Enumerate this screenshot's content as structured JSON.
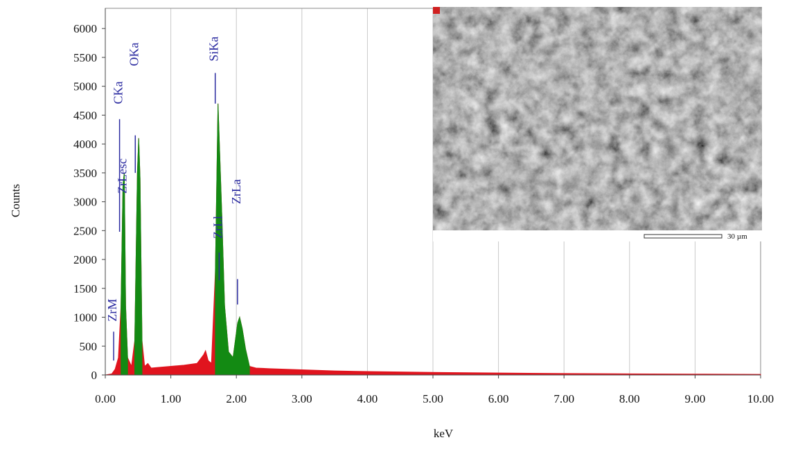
{
  "chart_data": {
    "type": "area",
    "x_label": "keV",
    "y_label": "Counts",
    "xlim": [
      0,
      10
    ],
    "ylim": [
      0,
      6350
    ],
    "xticks": [
      {
        "value": 0,
        "label": "0.00"
      },
      {
        "value": 1,
        "label": "1.00"
      },
      {
        "value": 2,
        "label": "2.00"
      },
      {
        "value": 3,
        "label": "3.00"
      },
      {
        "value": 4,
        "label": "4.00"
      },
      {
        "value": 5,
        "label": "5.00"
      },
      {
        "value": 6,
        "label": "6.00"
      },
      {
        "value": 7,
        "label": "7.00"
      },
      {
        "value": 8,
        "label": "8.00"
      },
      {
        "value": 9,
        "label": "9.00"
      },
      {
        "value": 10,
        "label": "10.00"
      }
    ],
    "yticks": [
      0,
      500,
      1000,
      1500,
      2000,
      2500,
      3000,
      3500,
      4000,
      4500,
      5000,
      5500,
      6000
    ],
    "grid": true,
    "x": [
      0.0,
      0.1,
      0.15,
      0.2,
      0.24,
      0.27,
      0.29,
      0.31,
      0.34,
      0.4,
      0.45,
      0.49,
      0.51,
      0.53,
      0.56,
      0.6,
      0.65,
      0.7,
      0.8,
      1.0,
      1.2,
      1.4,
      1.5,
      1.53,
      1.57,
      1.62,
      1.68,
      1.72,
      1.75,
      1.78,
      1.82,
      1.88,
      1.95,
      2.02,
      2.05,
      2.09,
      2.14,
      2.2,
      2.3,
      2.5,
      3.0,
      3.5,
      4.0,
      5.0,
      6.0,
      7.0,
      8.0,
      9.0,
      10.0
    ],
    "series": [
      {
        "color": "#e0141e",
        "values": [
          0,
          20,
          100,
          300,
          1200,
          3300,
          3500,
          1200,
          300,
          150,
          600,
          3500,
          4100,
          3400,
          600,
          150,
          200,
          120,
          130,
          150,
          170,
          200,
          350,
          420,
          250,
          200,
          1800,
          4700,
          3700,
          2700,
          1200,
          400,
          300,
          900,
          1000,
          800,
          450,
          150,
          120,
          110,
          90,
          70,
          60,
          45,
          35,
          25,
          20,
          15,
          10
        ]
      },
      {
        "color": "#138a13",
        "values": [
          null,
          null,
          null,
          null,
          1200,
          3300,
          3500,
          1200,
          300,
          null,
          600,
          3500,
          4100,
          3400,
          600,
          null,
          null,
          null,
          null,
          null,
          null,
          null,
          null,
          null,
          null,
          null,
          1800,
          4700,
          3700,
          2700,
          1200,
          400,
          300,
          900,
          1000,
          800,
          450,
          150,
          null,
          null,
          null,
          null,
          null,
          null,
          null,
          null,
          null,
          null,
          null
        ]
      }
    ],
    "annotations": [
      {
        "text": "ZrM",
        "x": 0.17,
        "y": 925,
        "line": [
          750,
          250
        ]
      },
      {
        "text": "CKa",
        "x": 0.26,
        "y": 4690,
        "line": [
          4430,
          2480
        ]
      },
      {
        "text": "ZrLesc",
        "x": 0.32,
        "y": 3140
      },
      {
        "text": "OKa",
        "x": 0.5,
        "y": 5350,
        "line": [
          4150,
          3500
        ]
      },
      {
        "text": "SiKa",
        "x": 1.72,
        "y": 5430,
        "line": [
          5230,
          4700
        ]
      },
      {
        "text": "ZrLl",
        "x": 1.78,
        "y": 2360,
        "line": [
          2120,
          1640
        ]
      },
      {
        "text": "ZrLa",
        "x": 2.06,
        "y": 2960,
        "line": [
          1660,
          1220
        ]
      }
    ],
    "inset": {
      "scale_label": "30 µm"
    }
  }
}
